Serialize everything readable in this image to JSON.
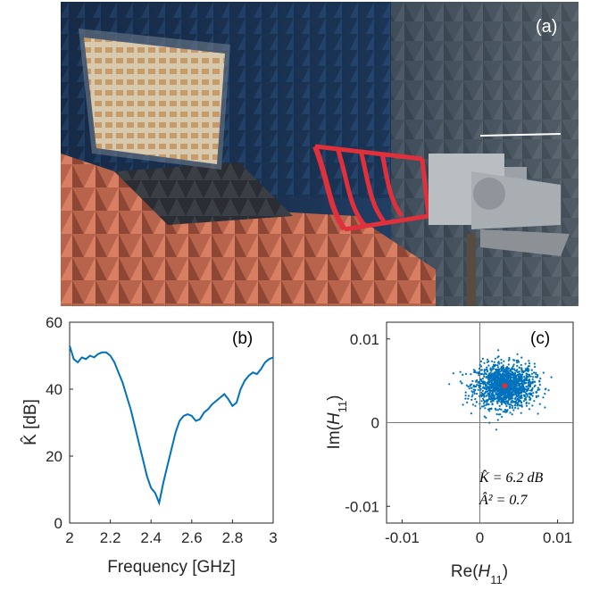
{
  "figure": {
    "photo_panel_label": "(a)",
    "photo_description_icon": "anechoic-chamber-photo"
  },
  "chart_data": [
    {
      "type": "line",
      "panel_label": "(b)",
      "xlabel": "Frequency [GHz]",
      "ylabel": "K̂ [dB]",
      "xlim": [
        2,
        3
      ],
      "ylim": [
        0,
        60
      ],
      "xticks": [
        "2",
        "2.2",
        "2.4",
        "2.6",
        "2.8",
        "3"
      ],
      "yticks": [
        "0",
        "20",
        "40",
        "60"
      ],
      "grid": false,
      "color": "#0072bd",
      "x": [
        2.0,
        2.02,
        2.04,
        2.06,
        2.08,
        2.1,
        2.12,
        2.14,
        2.16,
        2.18,
        2.2,
        2.22,
        2.24,
        2.26,
        2.28,
        2.3,
        2.32,
        2.34,
        2.36,
        2.38,
        2.4,
        2.42,
        2.44,
        2.46,
        2.48,
        2.5,
        2.52,
        2.54,
        2.56,
        2.58,
        2.6,
        2.62,
        2.64,
        2.66,
        2.68,
        2.7,
        2.72,
        2.74,
        2.76,
        2.78,
        2.8,
        2.82,
        2.84,
        2.86,
        2.88,
        2.9,
        2.92,
        2.94,
        2.96,
        2.98,
        3.0
      ],
      "y": [
        53,
        49,
        48,
        49.5,
        49,
        50,
        49.5,
        50.5,
        51,
        51,
        50,
        48,
        45,
        42,
        38,
        34,
        29,
        24,
        19,
        14,
        10.5,
        9,
        6,
        12,
        17,
        22,
        27,
        30.5,
        32,
        32.5,
        32,
        30.5,
        31,
        33,
        34,
        35.5,
        36.5,
        37.5,
        38.5,
        37,
        35,
        36,
        40,
        42.5,
        44,
        45,
        44.5,
        46,
        48,
        49,
        49.5
      ]
    },
    {
      "type": "scatter",
      "panel_label": "(c)",
      "xlabel": "Re(H11)",
      "ylabel": "Im(H11)",
      "xlim": [
        -0.012,
        0.012
      ],
      "ylim": [
        -0.012,
        0.012
      ],
      "xticks": [
        "-0.01",
        "0",
        "0.01"
      ],
      "yticks": [
        "-0.01",
        "0",
        "0.01"
      ],
      "grid": false,
      "axes_lines_at_zero": true,
      "color": "#0072bd",
      "mean_color": "#e03030",
      "mean": [
        0.0032,
        0.0044
      ],
      "spread": [
        0.0019,
        0.0013
      ],
      "n_points": 1500,
      "annotations": [
        "K̂ = 6.2 dB",
        "Â² = 0.7"
      ]
    }
  ]
}
